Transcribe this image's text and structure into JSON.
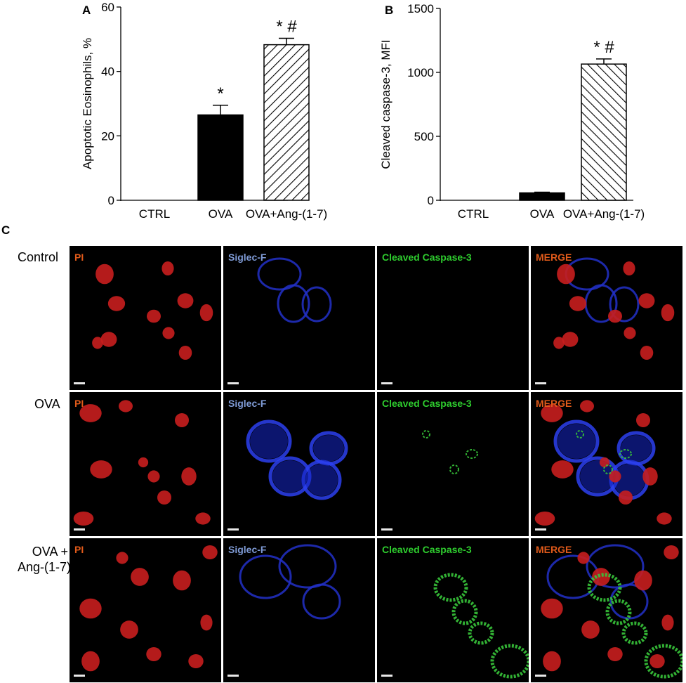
{
  "panels": {
    "a": "A",
    "b": "B",
    "c": "C"
  },
  "chart_data": [
    {
      "type": "bar",
      "panel": "A",
      "categories": [
        "CTRL",
        "OVA",
        "OVA+Ang-(1-7)"
      ],
      "values": [
        0,
        26.5,
        48.3
      ],
      "errors": [
        0,
        3.0,
        2.0
      ],
      "annotations": [
        "",
        "*",
        "* #"
      ],
      "ylabel": "Apoptotic Eosinophils, %",
      "ylim": [
        0,
        60
      ],
      "yticks": [
        0,
        20,
        40,
        60
      ],
      "fills": [
        "solid",
        "solid",
        "hatched"
      ],
      "bar_color": "#000000",
      "grid": false
    },
    {
      "type": "bar",
      "panel": "B",
      "categories": [
        "CTRL",
        "OVA",
        "OVA+Ang-(1-7)"
      ],
      "values": [
        0,
        58,
        1065
      ],
      "errors": [
        0,
        5,
        40
      ],
      "annotations": [
        "",
        "",
        "* #"
      ],
      "ylabel": "Cleaved caspase-3, MFI",
      "ylim": [
        0,
        1500
      ],
      "yticks": [
        0,
        500,
        1000,
        1500
      ],
      "fills": [
        "solid",
        "solid",
        "hatched"
      ],
      "bar_color": "#000000",
      "grid": false
    }
  ],
  "microscopy": {
    "rows": [
      "Control",
      "OVA",
      "OVA +\nAng-(1-7)"
    ],
    "columns": [
      {
        "label": "PI",
        "color": "#e05a1a"
      },
      {
        "label": "Siglec-F",
        "color": "#7f9bd6"
      },
      {
        "label": "Cleaved Caspase-3",
        "color": "#2ecc2e"
      },
      {
        "label": "MERGE",
        "color": "#e05a1a"
      }
    ]
  }
}
